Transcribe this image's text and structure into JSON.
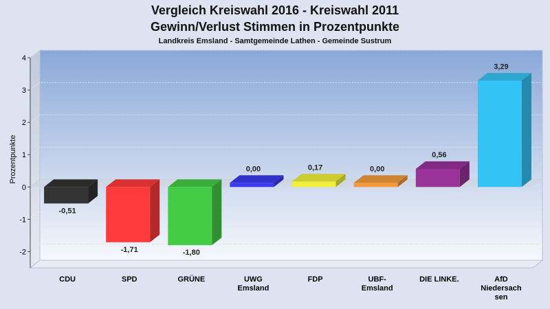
{
  "chart_data": {
    "type": "bar",
    "title": "Vergleich Kreiswahl 2016 - Kreiswahl 2011",
    "subtitle": "Gewinn/Verlust Stimmen in Prozentpunkte",
    "subsubtitle": "Landkreis Emsland - Samtgemeinde Lathen - Gemeinde Sustrum",
    "ylabel": "Prozentpunkte",
    "xlabel": "",
    "ylim": [
      -2.5,
      4
    ],
    "yticks": [
      4,
      3,
      2,
      1,
      0,
      -1,
      -2
    ],
    "grid": true,
    "categories": [
      [
        "CDU"
      ],
      [
        "SPD"
      ],
      [
        "GRÜNE"
      ],
      [
        "UWG",
        "Emsland"
      ],
      [
        "FDP"
      ],
      [
        "UBF-",
        "Emsland"
      ],
      [
        "DIE LINKE."
      ],
      [
        "AfD",
        "Niedersach",
        "sen"
      ]
    ],
    "values": [
      -0.51,
      -1.71,
      -1.8,
      0.0,
      0.17,
      0.0,
      0.56,
      3.29
    ],
    "labels": [
      "-0,51",
      "-1,71",
      "-1,80",
      "0,00",
      "0,17",
      "0,00",
      "0,56",
      "3,29"
    ],
    "colors": [
      "#333333",
      "#ff3a3a",
      "#44cc44",
      "#3a3af0",
      "#f0f03a",
      "#f59a3a",
      "#993399",
      "#33c4f5"
    ]
  }
}
